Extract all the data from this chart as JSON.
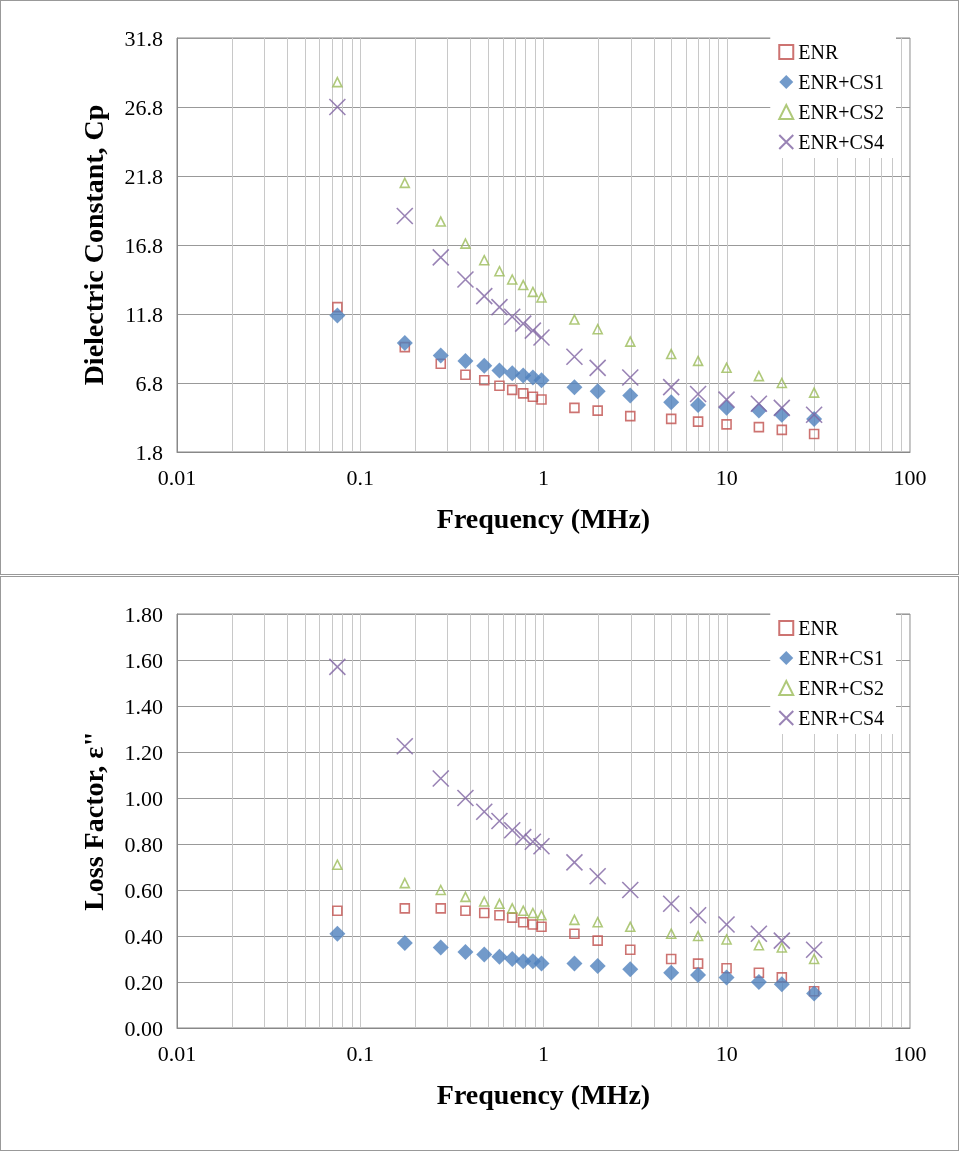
{
  "chart_data": [
    {
      "type": "scatter",
      "ylabel": "Dielectric Constant, Cp",
      "xlabel": "Frequency (MHz)",
      "log": "x",
      "grid": true,
      "legend": "top right",
      "xlim": [
        0.01,
        100
      ],
      "xticks": [
        0.01,
        0.1,
        1,
        10,
        100
      ],
      "ylim": [
        1.8,
        31.8
      ],
      "yticks": [
        1.8,
        6.8,
        11.8,
        16.8,
        21.8,
        26.8,
        31.8
      ],
      "x": [
        0.075,
        0.175,
        0.275,
        0.375,
        0.475,
        0.575,
        0.675,
        0.775,
        0.875,
        0.975,
        1.475,
        1.975,
        2.975,
        4.975,
        6.975,
        9.975,
        14.975,
        19.975,
        29.975
      ],
      "series": [
        {
          "name": "ENR",
          "color": "#c0504d",
          "marker": "square",
          "values": [
            12.3,
            9.4,
            8.2,
            7.4,
            7.0,
            6.6,
            6.3,
            6.05,
            5.8,
            5.6,
            5.0,
            4.8,
            4.4,
            4.2,
            4.0,
            3.8,
            3.6,
            3.4,
            3.1
          ]
        },
        {
          "name": "ENR+CS1",
          "color": "#4f81bd",
          "marker": "diamond",
          "values": [
            11.7,
            9.7,
            8.8,
            8.4,
            8.05,
            7.7,
            7.5,
            7.35,
            7.2,
            7.0,
            6.5,
            6.2,
            5.9,
            5.4,
            5.2,
            5.0,
            4.8,
            4.5,
            4.2
          ]
        },
        {
          "name": "ENR+CS2",
          "color": "#9bbb59",
          "marker": "triangle",
          "values": [
            28.6,
            21.3,
            18.5,
            16.9,
            15.7,
            14.9,
            14.3,
            13.9,
            13.4,
            13.0,
            11.4,
            10.7,
            9.8,
            8.9,
            8.4,
            7.9,
            7.3,
            6.8,
            6.1
          ]
        },
        {
          "name": "ENR+CS4",
          "color": "#8064a2",
          "marker": "cross",
          "values": [
            26.8,
            18.9,
            15.9,
            14.3,
            13.1,
            12.3,
            11.6,
            11.1,
            10.6,
            10.1,
            8.7,
            7.9,
            7.2,
            6.5,
            6.0,
            5.6,
            5.3,
            5.0,
            4.5
          ]
        }
      ]
    },
    {
      "type": "scatter",
      "ylabel": "Loss Factor, ε\"",
      "xlabel": "Frequency (MHz)",
      "log": "x",
      "grid": true,
      "legend": "top right",
      "xlim": [
        0.01,
        100
      ],
      "xticks": [
        0.01,
        0.1,
        1,
        10,
        100
      ],
      "ylim": [
        0,
        1.8
      ],
      "yticks": [
        {
          "value": 0,
          "label": "0.00"
        },
        {
          "value": 0.2,
          "label": "0.20"
        },
        {
          "value": 0.4,
          "label": "0.40"
        },
        {
          "value": 0.6,
          "label": "0.60"
        },
        {
          "value": 0.8,
          "label": "0.80"
        },
        {
          "value": 1,
          "label": "1.00"
        },
        {
          "value": 1.2,
          "label": "1.20"
        },
        {
          "value": 1.4,
          "label": "1.40"
        },
        {
          "value": 1.6,
          "label": "1.60"
        },
        {
          "value": 1.8,
          "label": "1.80"
        }
      ],
      "x": [
        0.075,
        0.175,
        0.275,
        0.375,
        0.475,
        0.575,
        0.675,
        0.775,
        0.875,
        0.975,
        1.475,
        1.975,
        2.975,
        4.975,
        6.975,
        9.975,
        14.975,
        19.975,
        29.975
      ],
      "series": [
        {
          "name": "ENR",
          "color": "#c0504d",
          "marker": "square",
          "values": [
            0.51,
            0.52,
            0.52,
            0.51,
            0.5,
            0.49,
            0.48,
            0.46,
            0.45,
            0.44,
            0.41,
            0.38,
            0.34,
            0.3,
            0.28,
            0.26,
            0.24,
            0.22,
            0.16
          ]
        },
        {
          "name": "ENR+CS1",
          "color": "#4f81bd",
          "marker": "diamond",
          "values": [
            0.41,
            0.37,
            0.35,
            0.33,
            0.32,
            0.31,
            0.3,
            0.29,
            0.29,
            0.28,
            0.28,
            0.27,
            0.255,
            0.24,
            0.23,
            0.22,
            0.2,
            0.19,
            0.15
          ]
        },
        {
          "name": "ENR+CS2",
          "color": "#9bbb59",
          "marker": "triangle",
          "values": [
            0.71,
            0.63,
            0.6,
            0.57,
            0.55,
            0.54,
            0.52,
            0.51,
            0.5,
            0.49,
            0.47,
            0.46,
            0.44,
            0.41,
            0.4,
            0.385,
            0.36,
            0.35,
            0.3
          ]
        },
        {
          "name": "ENR+CS4",
          "color": "#8064a2",
          "marker": "cross",
          "values": [
            1.57,
            1.225,
            1.085,
            1.0,
            0.94,
            0.9,
            0.86,
            0.83,
            0.81,
            0.79,
            0.72,
            0.66,
            0.6,
            0.54,
            0.49,
            0.45,
            0.41,
            0.38,
            0.34
          ]
        }
      ]
    }
  ]
}
